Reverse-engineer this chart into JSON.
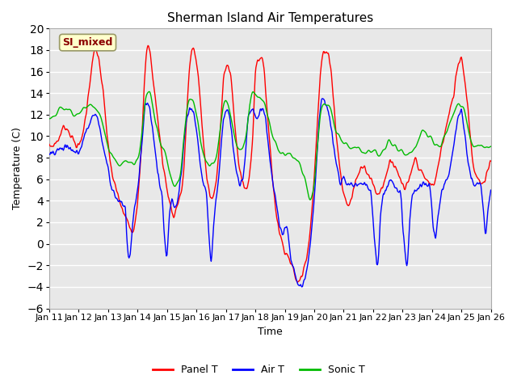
{
  "title": "Sherman Island Air Temperatures",
  "xlabel": "Time",
  "ylabel": "Temperature (C)",
  "ylim": [
    -6,
    20
  ],
  "yticks": [
    -6,
    -4,
    -2,
    0,
    2,
    4,
    6,
    8,
    10,
    12,
    14,
    16,
    18,
    20
  ],
  "x_tick_labels": [
    "Jan 11",
    "Jan 12",
    "Jan 13",
    "Jan 14",
    "Jan 15",
    "Jan 16",
    "Jan 17",
    "Jan 18",
    "Jan 19",
    "Jan 20",
    "Jan 21",
    "Jan 22",
    "Jan 23",
    "Jan 24",
    "Jan 25",
    "Jan 26"
  ],
  "x_tick_positions": [
    0,
    24,
    48,
    72,
    96,
    120,
    144,
    168,
    192,
    216,
    240,
    264,
    288,
    312,
    336,
    360
  ],
  "xlim": [
    0,
    360
  ],
  "color_panel": "#ff0000",
  "color_air": "#0000ff",
  "color_sonic": "#00bb00",
  "line_width": 1.0,
  "annotation_text": "SI_mixed",
  "annotation_color": "#8b0000",
  "annotation_bg": "#ffffcc",
  "plot_bg_color": "#e8e8e8",
  "grid_color": "#ffffff",
  "legend_items": [
    "Panel T",
    "Air T",
    "Sonic T"
  ],
  "figsize": [
    6.4,
    4.8
  ],
  "dpi": 100,
  "title_fontsize": 11,
  "axis_fontsize": 9,
  "tick_fontsize": 8,
  "legend_fontsize": 9
}
